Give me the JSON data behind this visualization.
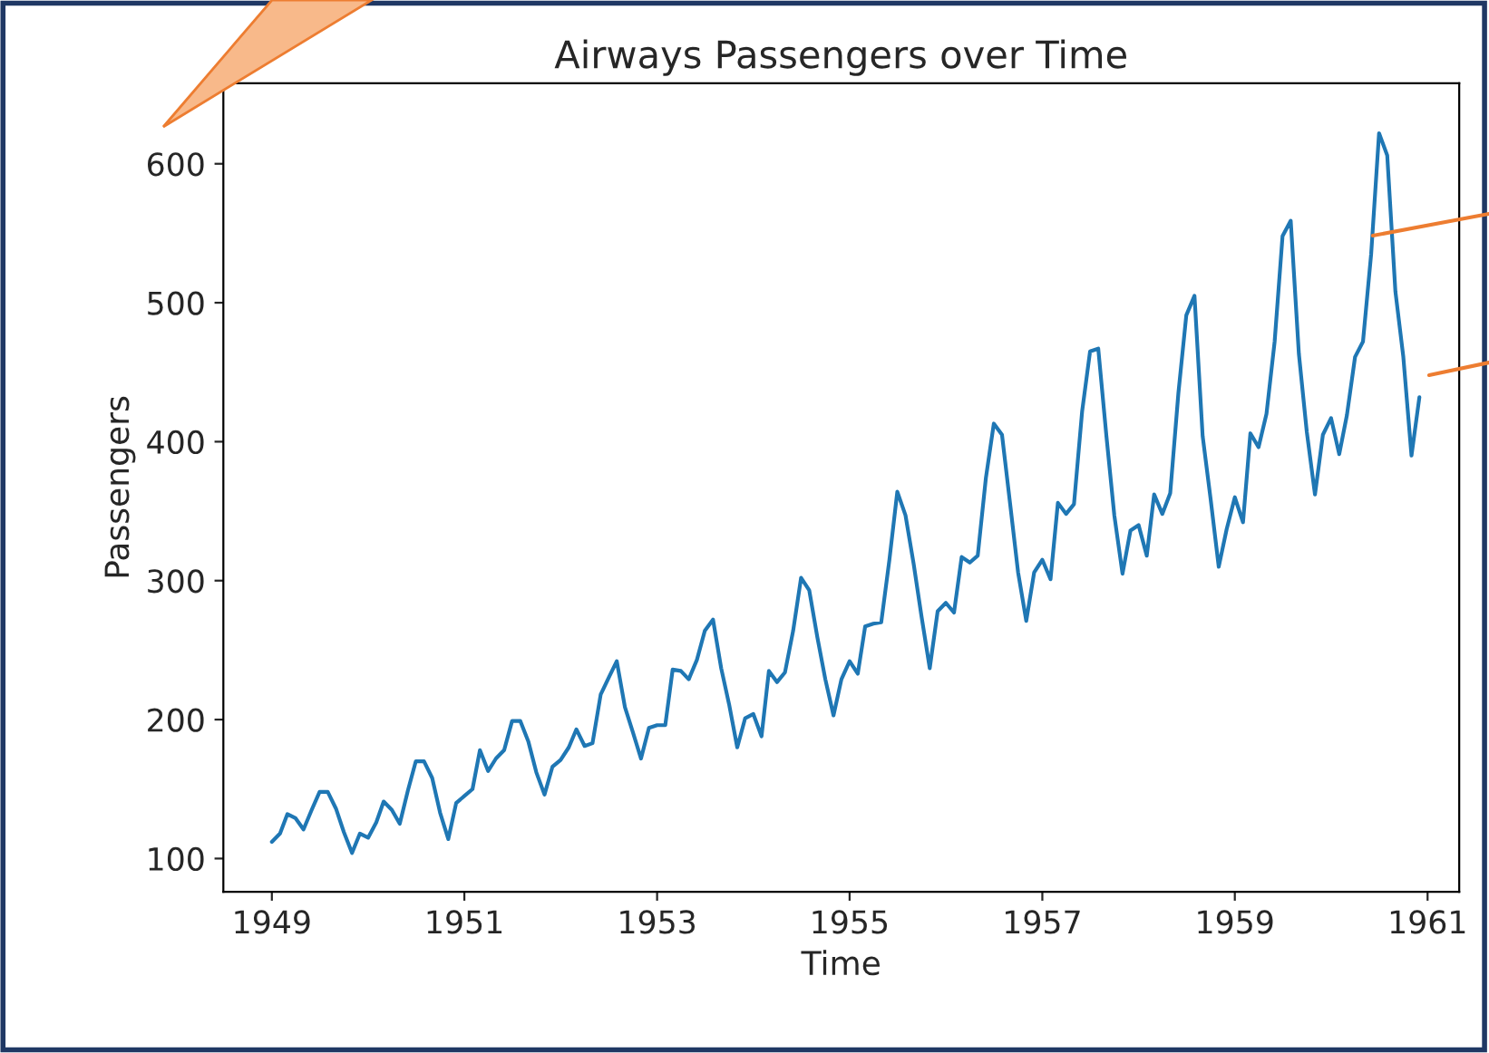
{
  "chart_data": {
    "type": "line",
    "title": "Airways Passengers over Time",
    "xlabel": "Time",
    "ylabel": "Passengers",
    "x": [
      "1949-01",
      "1949-02",
      "1949-03",
      "1949-04",
      "1949-05",
      "1949-06",
      "1949-07",
      "1949-08",
      "1949-09",
      "1949-10",
      "1949-11",
      "1949-12",
      "1950-01",
      "1950-02",
      "1950-03",
      "1950-04",
      "1950-05",
      "1950-06",
      "1950-07",
      "1950-08",
      "1950-09",
      "1950-10",
      "1950-11",
      "1950-12",
      "1951-01",
      "1951-02",
      "1951-03",
      "1951-04",
      "1951-05",
      "1951-06",
      "1951-07",
      "1951-08",
      "1951-09",
      "1951-10",
      "1951-11",
      "1951-12",
      "1952-01",
      "1952-02",
      "1952-03",
      "1952-04",
      "1952-05",
      "1952-06",
      "1952-07",
      "1952-08",
      "1952-09",
      "1952-10",
      "1952-11",
      "1952-12",
      "1953-01",
      "1953-02",
      "1953-03",
      "1953-04",
      "1953-05",
      "1953-06",
      "1953-07",
      "1953-08",
      "1953-09",
      "1953-10",
      "1953-11",
      "1953-12",
      "1954-01",
      "1954-02",
      "1954-03",
      "1954-04",
      "1954-05",
      "1954-06",
      "1954-07",
      "1954-08",
      "1954-09",
      "1954-10",
      "1954-11",
      "1954-12",
      "1955-01",
      "1955-02",
      "1955-03",
      "1955-04",
      "1955-05",
      "1955-06",
      "1955-07",
      "1955-08",
      "1955-09",
      "1955-10",
      "1955-11",
      "1955-12",
      "1956-01",
      "1956-02",
      "1956-03",
      "1956-04",
      "1956-05",
      "1956-06",
      "1956-07",
      "1956-08",
      "1956-09",
      "1956-10",
      "1956-11",
      "1956-12",
      "1957-01",
      "1957-02",
      "1957-03",
      "1957-04",
      "1957-05",
      "1957-06",
      "1957-07",
      "1957-08",
      "1957-09",
      "1957-10",
      "1957-11",
      "1957-12",
      "1958-01",
      "1958-02",
      "1958-03",
      "1958-04",
      "1958-05",
      "1958-06",
      "1958-07",
      "1958-08",
      "1958-09",
      "1958-10",
      "1958-11",
      "1958-12",
      "1959-01",
      "1959-02",
      "1959-03",
      "1959-04",
      "1959-05",
      "1959-06",
      "1959-07",
      "1959-08",
      "1959-09",
      "1959-10",
      "1959-11",
      "1959-12",
      "1960-01",
      "1960-02",
      "1960-03",
      "1960-04",
      "1960-05",
      "1960-06",
      "1960-07",
      "1960-08",
      "1960-09",
      "1960-10",
      "1960-11",
      "1960-12"
    ],
    "series": [
      {
        "color": "#1f77b4",
        "values": [
          112,
          118,
          132,
          129,
          121,
          135,
          148,
          148,
          136,
          119,
          104,
          118,
          115,
          126,
          141,
          135,
          125,
          149,
          170,
          170,
          158,
          133,
          114,
          140,
          145,
          150,
          178,
          163,
          172,
          178,
          199,
          199,
          184,
          162,
          146,
          166,
          171,
          180,
          193,
          181,
          183,
          218,
          230,
          242,
          209,
          191,
          172,
          194,
          196,
          196,
          236,
          235,
          229,
          243,
          264,
          272,
          237,
          211,
          180,
          201,
          204,
          188,
          235,
          227,
          234,
          264,
          302,
          293,
          259,
          229,
          203,
          229,
          242,
          233,
          267,
          269,
          270,
          315,
          364,
          347,
          312,
          274,
          237,
          278,
          284,
          277,
          317,
          313,
          318,
          374,
          413,
          405,
          355,
          306,
          271,
          306,
          315,
          301,
          356,
          348,
          355,
          422,
          465,
          467,
          404,
          347,
          305,
          336,
          340,
          318,
          362,
          348,
          363,
          435,
          491,
          505,
          404,
          359,
          310,
          337,
          360,
          342,
          406,
          396,
          420,
          472,
          548,
          559,
          463,
          407,
          362,
          405,
          417,
          391,
          419,
          461,
          472,
          535,
          622,
          606,
          508,
          461,
          390,
          432
        ]
      }
    ],
    "xlim": [
      "1948-07",
      "1961-05"
    ],
    "xticks": [
      "1949",
      "1951",
      "1953",
      "1955",
      "1957",
      "1959",
      "1961"
    ],
    "ylim": [
      76,
      658
    ],
    "yticks": [
      100,
      200,
      300,
      400,
      500,
      600
    ],
    "grid": false,
    "legend": false,
    "marker": "none",
    "line_style": "solid"
  }
}
